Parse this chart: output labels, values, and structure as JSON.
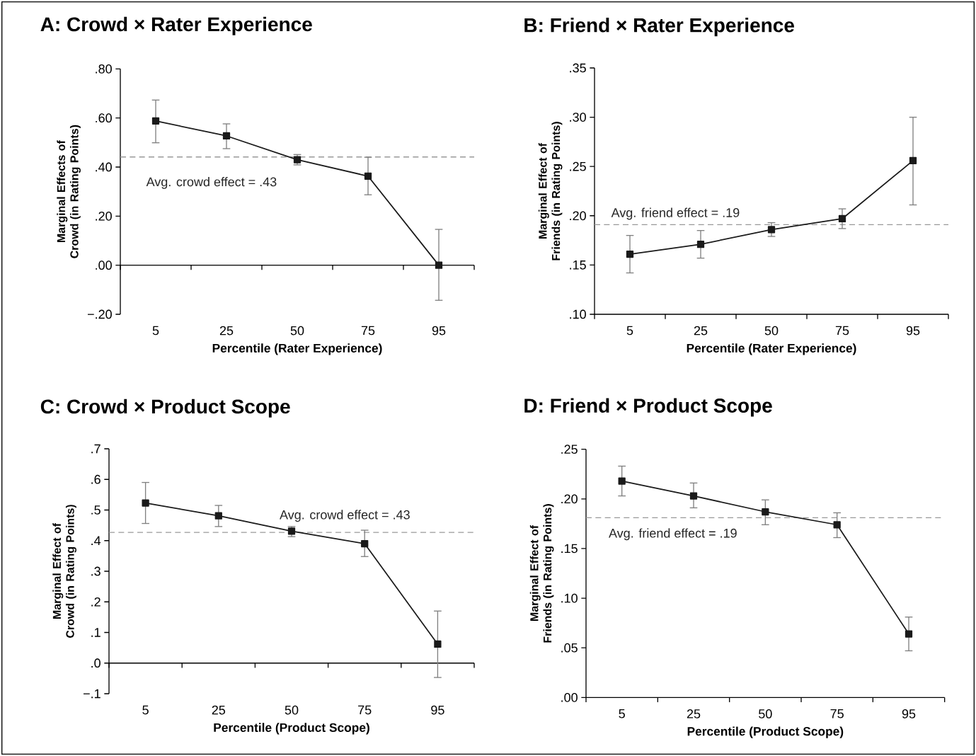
{
  "chart_data": [
    {
      "type": "line",
      "title": "A: Crowd × Rater Experience",
      "xlabel": "Percentile (Rater Experience)",
      "ylabel": "Marginal Effects of Crowd (in Rating Points)",
      "categories": [
        "5",
        "25",
        "50",
        "75",
        "95"
      ],
      "series": [
        {
          "color": "#1a1a1a",
          "values": [
            0.588,
            0.527,
            0.43,
            0.363,
            0.0
          ],
          "errors": [
            [
              0.499,
              0.673
            ],
            [
              0.475,
              0.576
            ],
            [
              0.409,
              0.451
            ],
            [
              0.287,
              0.44
            ],
            [
              -0.143,
              0.146
            ]
          ]
        }
      ],
      "ylim": [
        -0.2,
        0.8
      ],
      "yticks": [
        {
          "value": 0.8,
          "label": ".80"
        },
        {
          "value": 0.6,
          "label": ".60"
        },
        {
          "value": 0.4,
          "label": ".40"
        },
        {
          "value": 0.2,
          "label": ".20"
        },
        {
          "value": 0.0,
          "label": ".00"
        },
        {
          "value": -0.2,
          "label": "−.20"
        }
      ],
      "ref_lines": [
        {
          "axis": "y",
          "value": 0.441,
          "label": "Avg. crowd effect = .43",
          "color": "#999999",
          "line_style": "dashed"
        }
      ],
      "marker": "square",
      "line_style": "solid"
    },
    {
      "type": "line",
      "title": "B: Friend × Rater Experience",
      "xlabel": "Percentile (Rater Experience)",
      "ylabel": "Marginal Effect of Friends (in Rating Points)",
      "categories": [
        "5",
        "25",
        "50",
        "75",
        "95"
      ],
      "series": [
        {
          "color": "#1a1a1a",
          "values": [
            0.161,
            0.171,
            0.186,
            0.197,
            0.256
          ],
          "errors": [
            [
              0.142,
              0.18
            ],
            [
              0.157,
              0.185
            ],
            [
              0.179,
              0.193
            ],
            [
              0.187,
              0.207
            ],
            [
              0.211,
              0.3
            ]
          ]
        }
      ],
      "ylim": [
        0.1,
        0.35
      ],
      "yticks": [
        {
          "value": 0.35,
          "label": ".35"
        },
        {
          "value": 0.3,
          "label": ".30"
        },
        {
          "value": 0.25,
          "label": ".25"
        },
        {
          "value": 0.2,
          "label": ".20"
        },
        {
          "value": 0.15,
          "label": ".15"
        },
        {
          "value": 0.1,
          "label": ".10"
        }
      ],
      "ref_lines": [
        {
          "axis": "y",
          "value": 0.191,
          "label": "Avg. friend effect = .19",
          "color": "#999999",
          "line_style": "dashed"
        }
      ],
      "marker": "square",
      "line_style": "solid"
    },
    {
      "type": "line",
      "title": "C: Crowd × Product Scope",
      "xlabel": "Percentile (Product Scope)",
      "ylabel": "Marginal Effect of Crowd (in Rating Points)",
      "categories": [
        "5",
        "25",
        "50",
        "75",
        "95"
      ],
      "series": [
        {
          "color": "#1a1a1a",
          "values": [
            0.523,
            0.481,
            0.431,
            0.39,
            0.062
          ],
          "errors": [
            [
              0.456,
              0.59
            ],
            [
              0.446,
              0.515
            ],
            [
              0.413,
              0.446
            ],
            [
              0.348,
              0.434
            ],
            [
              -0.047,
              0.17
            ]
          ]
        }
      ],
      "ylim": [
        -0.1,
        0.7
      ],
      "yticks": [
        {
          "value": 0.7,
          "label": ".7"
        },
        {
          "value": 0.6,
          "label": ".6"
        },
        {
          "value": 0.5,
          "label": ".5"
        },
        {
          "value": 0.4,
          "label": ".4"
        },
        {
          "value": 0.3,
          "label": ".3"
        },
        {
          "value": 0.2,
          "label": ".2"
        },
        {
          "value": 0.1,
          "label": ".1"
        },
        {
          "value": 0.0,
          "label": ".0"
        },
        {
          "value": -0.1,
          "label": "−.1"
        }
      ],
      "ref_lines": [
        {
          "axis": "y",
          "value": 0.427,
          "label": "Avg. crowd effect = .43",
          "color": "#999999",
          "line_style": "dashed"
        }
      ],
      "marker": "square",
      "line_style": "solid"
    },
    {
      "type": "line",
      "title": "D: Friend × Product Scope",
      "xlabel": "Percentile (Product Scope)",
      "ylabel": "Marginal Effect of Friends (in Rating Points)",
      "categories": [
        "5",
        "25",
        "50",
        "75",
        "95"
      ],
      "series": [
        {
          "color": "#1a1a1a",
          "values": [
            0.218,
            0.203,
            0.187,
            0.174,
            0.064
          ],
          "errors": [
            [
              0.203,
              0.233
            ],
            [
              0.191,
              0.216
            ],
            [
              0.174,
              0.199
            ],
            [
              0.161,
              0.186
            ],
            [
              0.047,
              0.081
            ]
          ]
        }
      ],
      "ylim": [
        0.0,
        0.25
      ],
      "yticks": [
        {
          "value": 0.25,
          "label": ".25"
        },
        {
          "value": 0.2,
          "label": ".20"
        },
        {
          "value": 0.15,
          "label": ".15"
        },
        {
          "value": 0.1,
          "label": ".10"
        },
        {
          "value": 0.05,
          "label": ".05"
        },
        {
          "value": 0.0,
          "label": ".00"
        }
      ],
      "ref_lines": [
        {
          "axis": "y",
          "value": 0.181,
          "label": "Avg. friend effect = .19",
          "color": "#999999",
          "line_style": "dashed"
        }
      ],
      "marker": "square",
      "line_style": "solid"
    }
  ]
}
